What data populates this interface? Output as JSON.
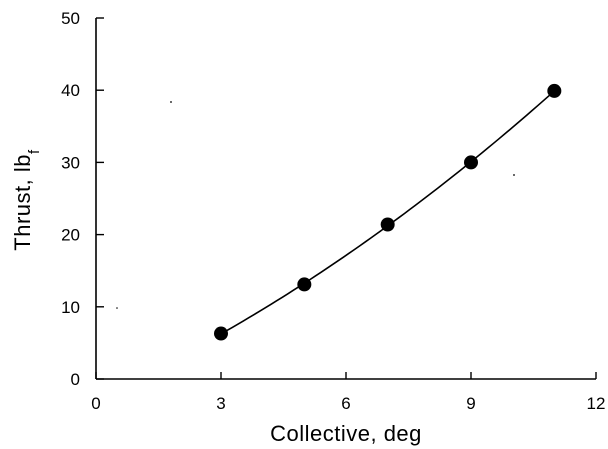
{
  "chart_data": {
    "type": "scatter",
    "title": "",
    "xlabel": "Collective, deg",
    "ylabel": "Thrust, lb",
    "ylabel_subscript": "f",
    "xlim": [
      0,
      12
    ],
    "ylim": [
      0,
      50
    ],
    "xticks": [
      0,
      3,
      6,
      9,
      12
    ],
    "yticks": [
      0,
      10,
      20,
      30,
      40,
      50
    ],
    "grid": false,
    "legend": "none",
    "series": [
      {
        "x": [
          3,
          5,
          7,
          9,
          11
        ],
        "y": [
          6.3,
          13.1,
          21.4,
          30.0,
          39.9
        ],
        "marker": "filled-circle",
        "fit_line": true
      }
    ],
    "color": "#000000"
  }
}
